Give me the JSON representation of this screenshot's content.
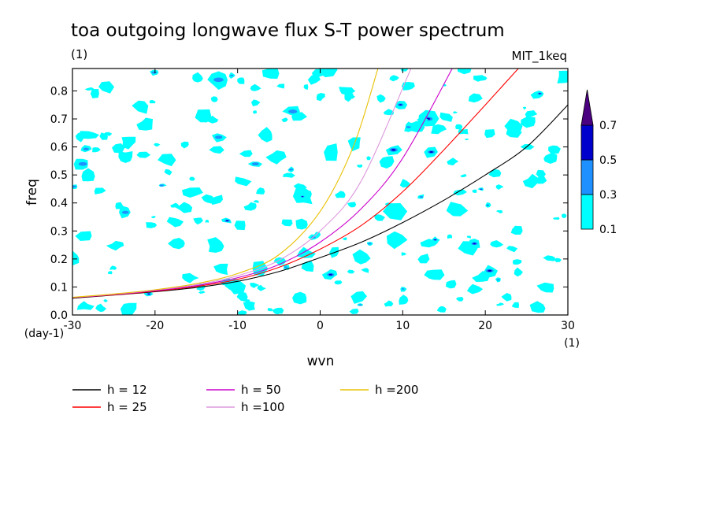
{
  "chart_data": {
    "type": "contour",
    "title": "toa outgoing longwave flux S-T power spectrum",
    "subtitle_left": "(1)",
    "subtitle_right": "MIT_1keq",
    "xlabel": "wvn",
    "ylabel": "freq",
    "x_unit": "(1)",
    "y_unit": "(day-1)",
    "xlim": [
      -30,
      30
    ],
    "ylim": [
      0,
      0.88
    ],
    "x_ticks": [
      -30,
      -20,
      -10,
      0,
      10,
      20,
      30
    ],
    "x_tick_labels": [
      "-30",
      "-20",
      "-10",
      "0",
      "10",
      "20",
      "30"
    ],
    "y_ticks": [
      0,
      0.1,
      0.2,
      0.3,
      0.4,
      0.5,
      0.6,
      0.7,
      0.8
    ],
    "y_tick_labels": [
      "0.0",
      "0.1",
      "0.2",
      "0.3",
      "0.4",
      "0.5",
      "0.6",
      "0.7",
      "0.8"
    ],
    "colorbar": {
      "levels": [
        0.1,
        0.3,
        0.5,
        0.7
      ],
      "level_labels": [
        "0.1",
        "0.3",
        "0.5",
        "0.7"
      ],
      "colors": [
        "#00ffff",
        "#1e90ff",
        "#0000cd",
        "#4b0082"
      ]
    },
    "series": [
      {
        "name": "h = 12",
        "color": "#000000",
        "x": [
          -30,
          -25,
          -20,
          -15,
          -10,
          -5,
          0,
          5,
          10,
          15,
          20,
          25,
          30
        ],
        "y": [
          0.06,
          0.071,
          0.083,
          0.098,
          0.12,
          0.155,
          0.205,
          0.26,
          0.33,
          0.41,
          0.5,
          0.6,
          0.75
        ]
      },
      {
        "name": "h = 25",
        "color": "#ff0000",
        "x": [
          -30,
          -25,
          -20,
          -15,
          -10,
          -5,
          0,
          5,
          10,
          15,
          20,
          24
        ],
        "y": [
          0.062,
          0.072,
          0.085,
          0.102,
          0.127,
          0.17,
          0.235,
          0.32,
          0.44,
          0.59,
          0.75,
          0.88
        ]
      },
      {
        "name": "h = 50",
        "color": "#cc00cc",
        "x": [
          -30,
          -25,
          -20,
          -15,
          -10,
          -5,
          0,
          5,
          10,
          16
        ],
        "y": [
          0.062,
          0.073,
          0.087,
          0.105,
          0.133,
          0.18,
          0.26,
          0.38,
          0.56,
          0.88
        ]
      },
      {
        "name": "h =100",
        "color": "#dd99dd",
        "x": [
          -30,
          -25,
          -20,
          -15,
          -10,
          -5,
          0,
          5,
          11
        ],
        "y": [
          0.063,
          0.074,
          0.089,
          0.108,
          0.14,
          0.195,
          0.3,
          0.48,
          0.88
        ]
      },
      {
        "name": "h =200",
        "color": "#e8c000",
        "x": [
          -30,
          -25,
          -20,
          -15,
          -10,
          -5,
          0,
          4,
          7
        ],
        "y": [
          0.063,
          0.075,
          0.09,
          0.112,
          0.148,
          0.215,
          0.37,
          0.6,
          0.88
        ]
      }
    ],
    "grid": false,
    "legend_position": "below"
  }
}
